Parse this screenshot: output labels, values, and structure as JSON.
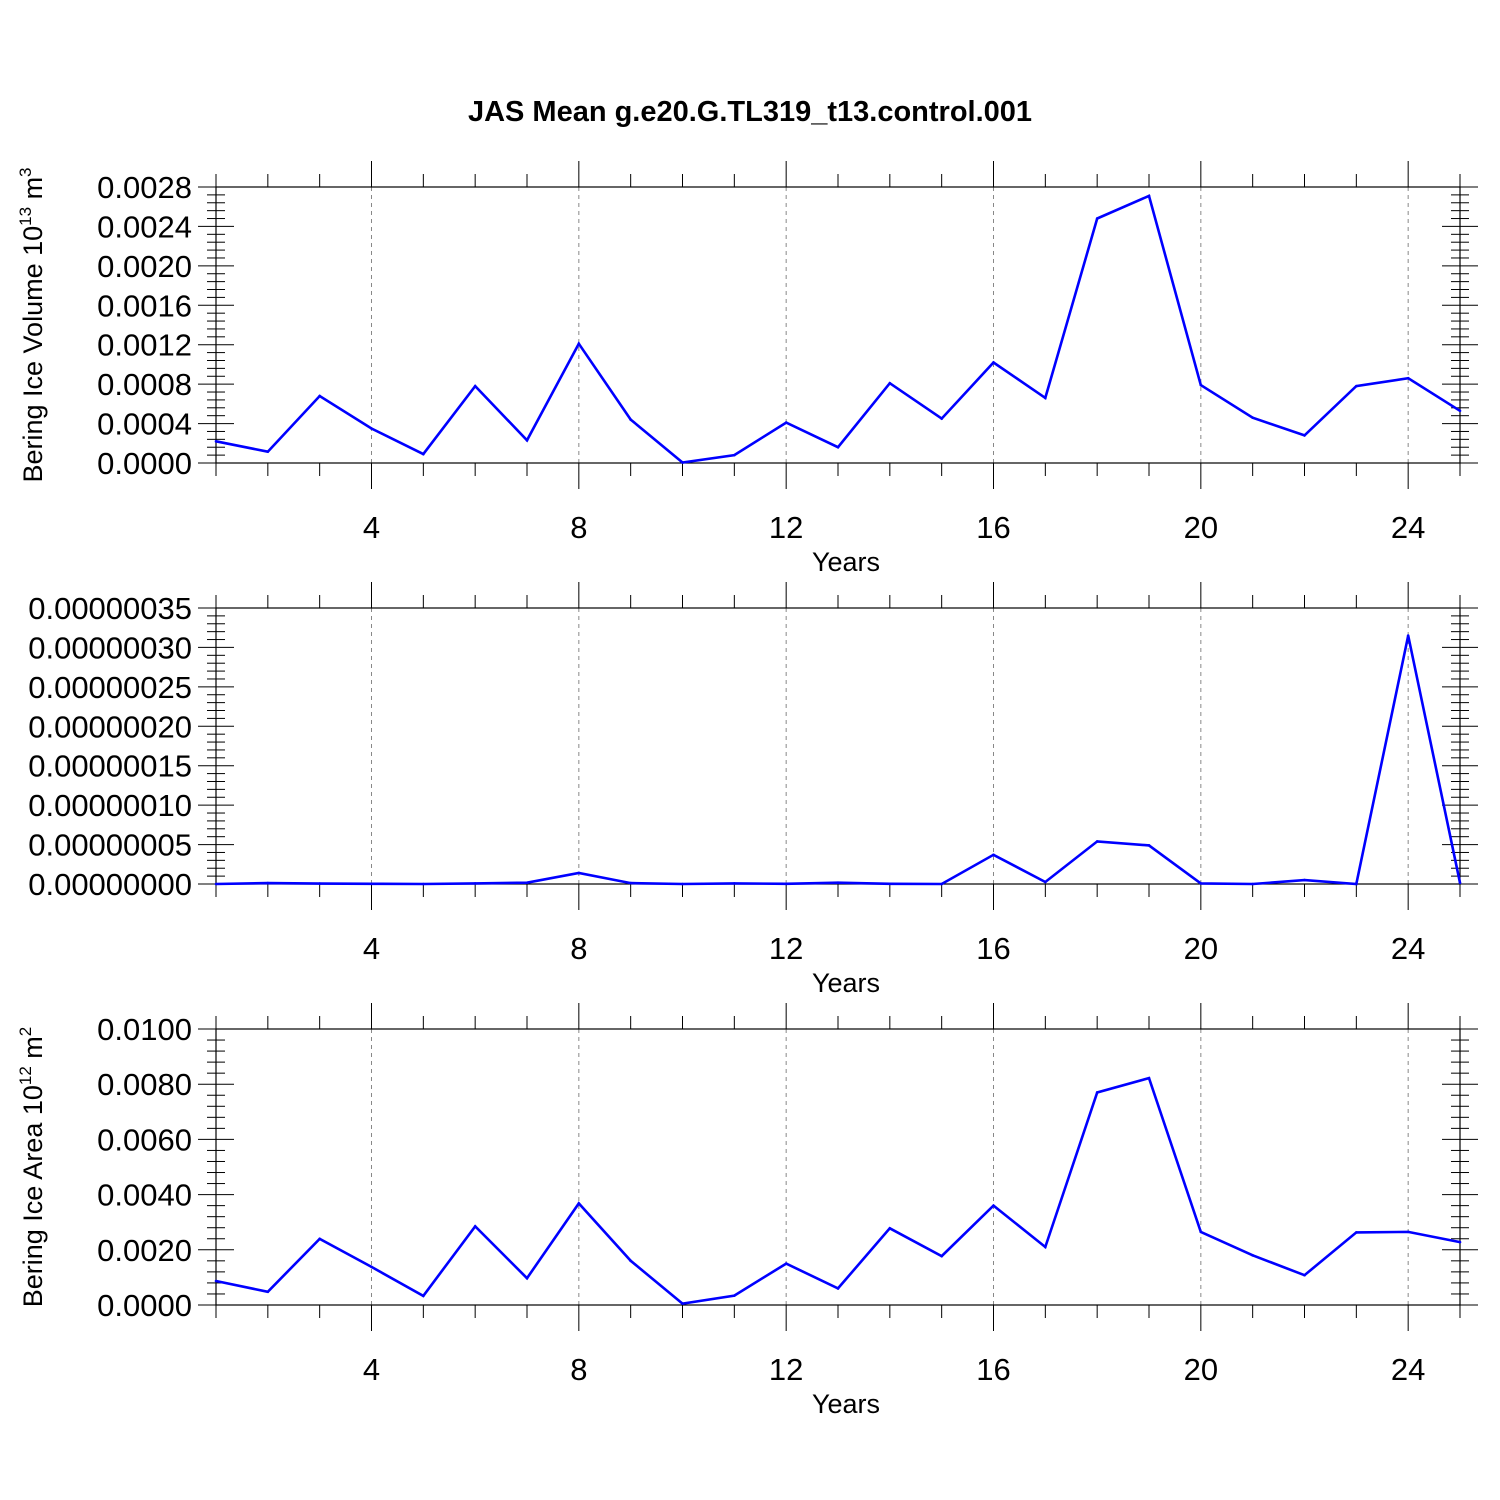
{
  "chart_data": [
    {
      "type": "line",
      "title": "JAS Mean g.e20.G.TL319_t13.control.001",
      "xlabel": "Years",
      "ylabel": "Bering Ice Volume 10",
      "ylabel_sup": "13",
      "ylabel_unit": "m",
      "ylabel_unit_sup": "3",
      "xlim": [
        1,
        25
      ],
      "ylim": [
        0,
        0.0028
      ],
      "x_ticks": [
        4,
        8,
        12,
        16,
        20,
        24
      ],
      "y_ticks": [
        "0.0000",
        "0.0004",
        "0.0008",
        "0.0012",
        "0.0016",
        "0.0020",
        "0.0024",
        "0.0028"
      ],
      "grid": "vertical dashed at x major ticks",
      "line_color": "#0000ff",
      "x": [
        1,
        2,
        3,
        4,
        5,
        6,
        7,
        8,
        9,
        10,
        11,
        12,
        13,
        14,
        15,
        16,
        17,
        18,
        19,
        20,
        21,
        22,
        23,
        24,
        25
      ],
      "values": [
        0.00022,
        0.000115,
        0.00068,
        0.00035,
        9e-05,
        0.00078,
        0.00023,
        0.00121,
        0.00044,
        5e-06,
        8e-05,
        0.00041,
        0.00016,
        0.00081,
        0.00045,
        0.00102,
        0.00066,
        0.00248,
        0.00271,
        0.00079,
        0.00046,
        0.00028,
        0.00078,
        0.00086,
        0.00053
      ]
    },
    {
      "type": "line",
      "title": "",
      "xlabel": "Years",
      "ylabel": "",
      "xlim": [
        1,
        25
      ],
      "ylim": [
        0,
        3.5e-07
      ],
      "x_ticks": [
        4,
        8,
        12,
        16,
        20,
        24
      ],
      "y_ticks": [
        "0.00000000",
        "0.00000005",
        "0.00000010",
        "0.00000015",
        "0.00000020",
        "0.00000025",
        "0.00000030",
        "0.00000035"
      ],
      "grid": "vertical dashed at x major ticks",
      "line_color": "#0000ff",
      "x": [
        1,
        2,
        3,
        4,
        5,
        6,
        7,
        8,
        9,
        10,
        11,
        12,
        13,
        14,
        15,
        16,
        17,
        18,
        19,
        20,
        21,
        22,
        23,
        24,
        25
      ],
      "values": [
        0.0,
        1.2e-09,
        5e-10,
        3e-10,
        0.0,
        7e-10,
        1.6e-09,
        1.4e-08,
        1.2e-09,
        0.0,
        8e-10,
        2e-10,
        1.7e-09,
        3e-10,
        0.0,
        3.7e-08,
        2.5e-09,
        5.4e-08,
        4.9e-08,
        8e-10,
        0.0,
        5e-09,
        0.0,
        3.15e-07,
        1.5e-09
      ]
    },
    {
      "type": "line",
      "title": "",
      "xlabel": "Years",
      "ylabel": "Bering Ice Area 10",
      "ylabel_sup": "12",
      "ylabel_unit": "m",
      "ylabel_unit_sup": "2",
      "xlim": [
        1,
        25
      ],
      "ylim": [
        0,
        0.01
      ],
      "x_ticks": [
        4,
        8,
        12,
        16,
        20,
        24
      ],
      "y_ticks": [
        "0.0000",
        "0.0020",
        "0.0040",
        "0.0060",
        "0.0080",
        "0.0100"
      ],
      "grid": "vertical dashed at x major ticks",
      "line_color": "#0000ff",
      "x": [
        1,
        2,
        3,
        4,
        5,
        6,
        7,
        8,
        9,
        10,
        11,
        12,
        13,
        14,
        15,
        16,
        17,
        18,
        19,
        20,
        21,
        22,
        23,
        24,
        25
      ],
      "values": [
        0.00087,
        0.00048,
        0.0024,
        0.00138,
        0.00033,
        0.00285,
        0.00097,
        0.00368,
        0.0016,
        5e-05,
        0.00034,
        0.0015,
        0.0006,
        0.00278,
        0.00177,
        0.0036,
        0.0021,
        0.0077,
        0.00822,
        0.00265,
        0.0018,
        0.00108,
        0.00263,
        0.00265,
        0.00228
      ]
    }
  ]
}
